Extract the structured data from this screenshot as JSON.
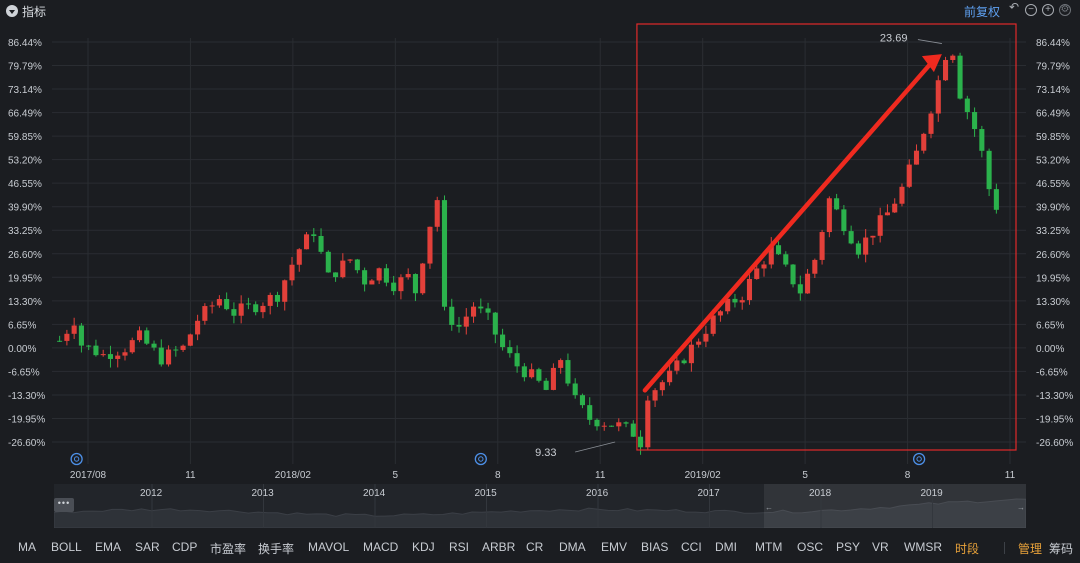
{
  "header": {
    "title": "指标",
    "adjust_label": "前复权",
    "tool_icons": [
      "reset-icon",
      "zoom-out-icon",
      "zoom-in-icon",
      "settings-icon"
    ]
  },
  "colors": {
    "background": "#1b1d21",
    "up": "#e2403a",
    "down": "#2bb24c",
    "grid": "#2a2d32",
    "axis_text": "#c8ccd2",
    "highlight_box": "#e02a2a",
    "arrow": "#ef2a1f",
    "accent_orange": "#e8a23a",
    "link_blue": "#5ea0f0"
  },
  "chart_data": {
    "type": "candlestick",
    "title": "",
    "xlabel": "",
    "ylabel": "",
    "y_unit": "%",
    "ylim": [
      -26.6,
      86.44
    ],
    "y_ticks": [
      "86.44%",
      "79.79%",
      "73.14%",
      "66.49%",
      "59.85%",
      "53.20%",
      "46.55%",
      "39.90%",
      "33.25%",
      "26.60%",
      "19.95%",
      "13.30%",
      "6.65%",
      "0.00%",
      "-6.65%",
      "-13.30%",
      "-19.95%",
      "-26.60%"
    ],
    "x_ticks": [
      "2017/08",
      "11",
      "2018/02",
      "5",
      "8",
      "11",
      "2019/02",
      "5",
      "8",
      "11"
    ],
    "annotations": {
      "low_label": "9.33",
      "high_label": "23.69"
    },
    "trend": [
      [
        0,
        2
      ],
      [
        2,
        8
      ],
      [
        3,
        1
      ],
      [
        6,
        -2
      ],
      [
        9,
        0
      ],
      [
        11,
        3
      ],
      [
        14,
        -3
      ],
      [
        17,
        0
      ],
      [
        19,
        8
      ],
      [
        22,
        14
      ],
      [
        24,
        10
      ],
      [
        27,
        12
      ],
      [
        30,
        15
      ],
      [
        33,
        28
      ],
      [
        35,
        33
      ],
      [
        37,
        20
      ],
      [
        40,
        25
      ],
      [
        42,
        19
      ],
      [
        44,
        22
      ],
      [
        46,
        18
      ],
      [
        48,
        20
      ],
      [
        49,
        16
      ],
      [
        51,
        35
      ],
      [
        52,
        42
      ],
      [
        53,
        10
      ],
      [
        55,
        6
      ],
      [
        57,
        12
      ],
      [
        59,
        8
      ],
      [
        61,
        0
      ],
      [
        63,
        -5
      ],
      [
        65,
        -8
      ],
      [
        67,
        -12
      ],
      [
        69,
        -3
      ],
      [
        71,
        -15
      ],
      [
        73,
        -20
      ],
      [
        75,
        -21
      ],
      [
        77,
        -22
      ],
      [
        79,
        -24
      ],
      [
        80,
        -26.6
      ],
      [
        81,
        -13
      ],
      [
        84,
        -8
      ],
      [
        87,
        0
      ],
      [
        90,
        8
      ],
      [
        92,
        12
      ],
      [
        94,
        15
      ],
      [
        96,
        22
      ],
      [
        98,
        28
      ],
      [
        100,
        22
      ],
      [
        102,
        16
      ],
      [
        104,
        25
      ],
      [
        106,
        42
      ],
      [
        108,
        35
      ],
      [
        110,
        28
      ],
      [
        112,
        33
      ],
      [
        114,
        38
      ],
      [
        116,
        45
      ],
      [
        118,
        55
      ],
      [
        120,
        68
      ],
      [
        122,
        83
      ],
      [
        123,
        84
      ],
      [
        124,
        72
      ],
      [
        126,
        62
      ],
      [
        127,
        55
      ],
      [
        128,
        45
      ],
      [
        129,
        40
      ]
    ],
    "n_bars": 130
  },
  "highlight": {
    "label": "highlight-box"
  },
  "navigator": {
    "years": [
      "2012",
      "2013",
      "2014",
      "2015",
      "2016",
      "2017",
      "2018",
      "2019"
    ]
  },
  "indicators": [
    {
      "label": "MA"
    },
    {
      "label": "BOLL"
    },
    {
      "label": "EMA"
    },
    {
      "label": "SAR"
    },
    {
      "label": "CDP"
    },
    {
      "label": "市盈率"
    },
    {
      "label": "换手率"
    },
    {
      "label": "MAVOL"
    },
    {
      "label": "MACD"
    },
    {
      "label": "KDJ"
    },
    {
      "label": "RSI"
    },
    {
      "label": "ARBR"
    },
    {
      "label": "CR"
    },
    {
      "label": "DMA"
    },
    {
      "label": "EMV"
    },
    {
      "label": "BIAS"
    },
    {
      "label": "CCI"
    },
    {
      "label": "DMI"
    },
    {
      "label": "MTM"
    },
    {
      "label": "OSC"
    },
    {
      "label": "PSY"
    },
    {
      "label": "VR"
    },
    {
      "label": "WMSR"
    },
    {
      "label": "时段"
    }
  ],
  "footer": {
    "manage_label": "管理",
    "chips_label": "筹码"
  }
}
